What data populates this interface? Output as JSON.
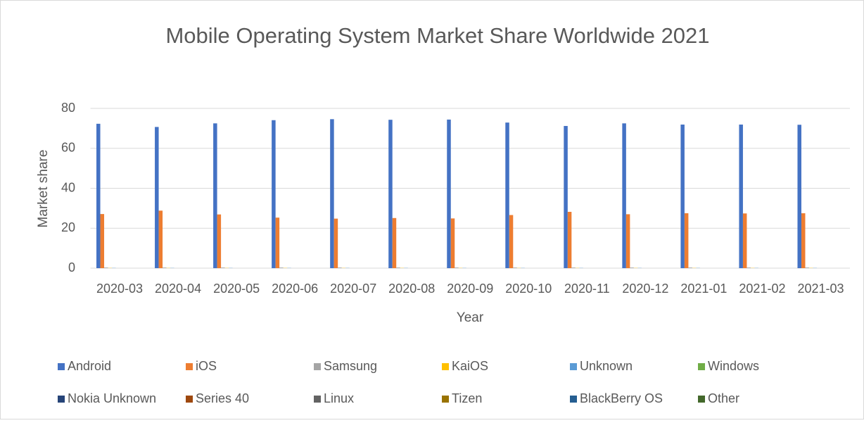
{
  "chart_data": {
    "type": "bar",
    "title": "Mobile Operating System Market Share Worldwide 2021",
    "x_label": "Year",
    "y_label": "Market share",
    "categories": [
      "2020-03",
      "2020-04",
      "2020-05",
      "2020-06",
      "2020-07",
      "2020-08",
      "2020-09",
      "2020-10",
      "2020-11",
      "2020-12",
      "2021-01",
      "2021-02",
      "2021-03"
    ],
    "series": [
      {
        "name": "Android",
        "color": "#4472c4",
        "values": [
          72.3,
          70.7,
          72.5,
          74.1,
          74.6,
          74.3,
          74.4,
          72.9,
          71.2,
          72.5,
          71.9,
          71.9,
          71.8
        ]
      },
      {
        "name": "iOS",
        "color": "#ed7d31",
        "values": [
          27.1,
          28.8,
          26.9,
          25.3,
          24.8,
          25.1,
          24.9,
          26.6,
          28.2,
          27.0,
          27.5,
          27.4,
          27.5
        ]
      },
      {
        "name": "Samsung",
        "color": "#a5a5a5",
        "values": [
          0.3,
          0.3,
          0.3,
          0.3,
          0.3,
          0.3,
          0.3,
          0.3,
          0.3,
          0.3,
          0.3,
          0.3,
          0.3
        ]
      },
      {
        "name": "KaiOS",
        "color": "#ffc000",
        "values": [
          0.1,
          0.1,
          0.1,
          0.1,
          0.1,
          0.1,
          0.1,
          0.1,
          0.1,
          0.1,
          0.1,
          0.1,
          0.1
        ]
      },
      {
        "name": "Unknown",
        "color": "#5b9bd5",
        "values": [
          0.1,
          0.1,
          0.1,
          0.1,
          0.1,
          0.1,
          0.1,
          0.1,
          0.1,
          0.1,
          0.1,
          0.1,
          0.1
        ]
      },
      {
        "name": "Windows",
        "color": "#70ad47",
        "values": [
          0,
          0,
          0,
          0,
          0,
          0,
          0,
          0,
          0,
          0,
          0,
          0,
          0
        ]
      },
      {
        "name": "Nokia Unknown",
        "color": "#264478",
        "values": [
          0,
          0,
          0,
          0,
          0,
          0,
          0,
          0,
          0,
          0,
          0,
          0,
          0
        ]
      },
      {
        "name": "Series 40",
        "color": "#9e480e",
        "values": [
          0,
          0,
          0,
          0,
          0,
          0,
          0,
          0,
          0,
          0,
          0,
          0,
          0
        ]
      },
      {
        "name": "Linux",
        "color": "#636363",
        "values": [
          0,
          0,
          0,
          0,
          0,
          0,
          0,
          0,
          0,
          0,
          0,
          0,
          0
        ]
      },
      {
        "name": "Tizen",
        "color": "#997300",
        "values": [
          0,
          0,
          0,
          0,
          0,
          0,
          0,
          0,
          0,
          0,
          0,
          0,
          0
        ]
      },
      {
        "name": "BlackBerry OS",
        "color": "#255e91",
        "values": [
          0,
          0,
          0,
          0,
          0,
          0,
          0,
          0,
          0,
          0,
          0,
          0,
          0
        ]
      },
      {
        "name": "Other",
        "color": "#43682b",
        "values": [
          0,
          0,
          0,
          0,
          0,
          0,
          0,
          0,
          0,
          0,
          0,
          0,
          0
        ]
      }
    ],
    "ylim": [
      0,
      80
    ],
    "yticks": [
      0,
      20,
      40,
      60,
      80
    ],
    "grid": true
  }
}
